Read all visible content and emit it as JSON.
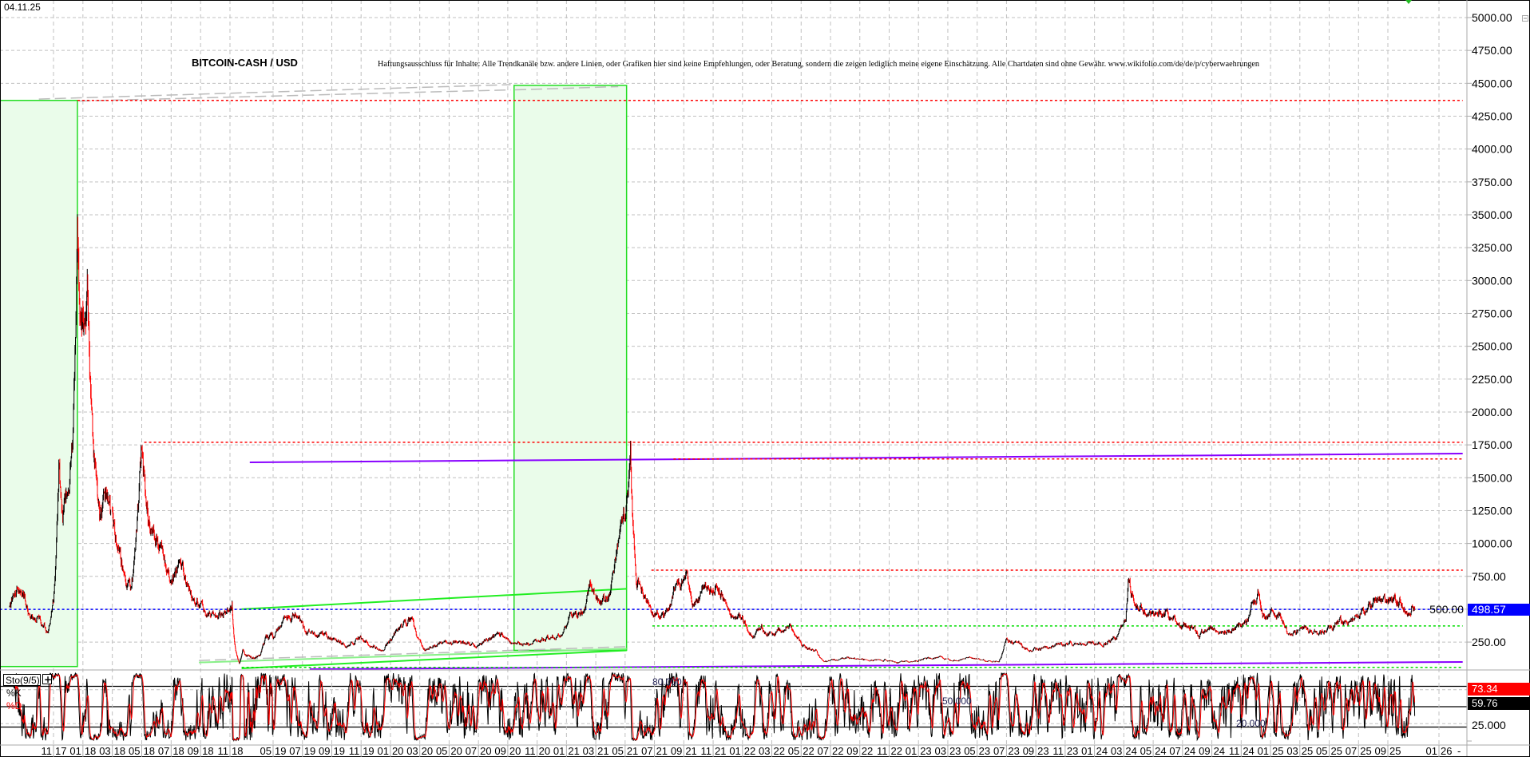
{
  "header": {
    "date": "04.11.25",
    "title": "BITCOIN-CASH / USD",
    "disclaimer": "Haftungsausschluss für Inhalte: Alle Trendkanäle bzw. andere Linien, oder Grafiken hier sind keine Empfehlungen, oder Beratung, sondern die zeigen lediglich meine eigene Einschätzung. Alle Chartdaten sind ohne Gewähr.  www.wikifolio.com/de/de/p/cyberwaehrungen"
  },
  "colors": {
    "grid": "#c0c0c0",
    "up_candle": "#000000",
    "down_candle": "#ff0000",
    "price_tag": "#0000ff",
    "stoch_k": "#000000",
    "stoch_d": "#ff0000",
    "zone_fill": "#eafcea",
    "zone_border": "#22dd22",
    "purple": "#8800ff"
  },
  "chart_data": [
    {
      "type": "line",
      "panel": "price",
      "style": "daily candlesticks (approximate closes listed)",
      "title": "BITCOIN-CASH / USD",
      "ylim": [
        0,
        5000
      ],
      "y_ticks": [
        "5000.00",
        "4750.00",
        "4500.00",
        "4250.00",
        "4000.00",
        "3750.00",
        "3500.00",
        "3250.00",
        "3000.00",
        "2750.00",
        "2500.00",
        "2250.00",
        "2000.00",
        "1750.00",
        "1500.00",
        "1250.00",
        "1000.00",
        "750.00",
        "500.00",
        "250.00"
      ],
      "y_tick_values": [
        5000,
        4750,
        4500,
        4250,
        4000,
        3750,
        3500,
        3250,
        3000,
        2750,
        2500,
        2250,
        2000,
        1750,
        1500,
        1250,
        1000,
        750,
        500,
        250
      ],
      "grid": true,
      "last_price": "498.57",
      "x": [
        "2017-08-01",
        "2017-08-15",
        "2017-09-01",
        "2017-09-15",
        "2017-10-01",
        "2017-10-20",
        "2017-11-01",
        "2017-11-12",
        "2017-11-20",
        "2017-12-01",
        "2017-12-10",
        "2017-12-20",
        "2017-12-25",
        "2018-01-01",
        "2018-01-10",
        "2018-01-20",
        "2018-02-05",
        "2018-02-20",
        "2018-03-01",
        "2018-03-15",
        "2018-04-01",
        "2018-04-10",
        "2018-04-30",
        "2018-05-15",
        "2018-06-01",
        "2018-06-15",
        "2018-07-01",
        "2018-07-20",
        "2018-08-10",
        "2018-09-01",
        "2018-09-15",
        "2018-10-15",
        "2018-11-10",
        "2018-11-20",
        "2018-12-10",
        "2018-12-25",
        "2019-02-01",
        "2019-03-01",
        "2019-04-01",
        "2019-05-01",
        "2019-05-20",
        "2019-06-20",
        "2019-07-10",
        "2019-08-01",
        "2019-09-01",
        "2019-10-01",
        "2019-10-25",
        "2019-11-20",
        "2019-12-15",
        "2020-01-15",
        "2020-02-15",
        "2020-03-12",
        "2020-04-01",
        "2020-05-01",
        "2020-06-01",
        "2020-07-01",
        "2020-07-25",
        "2020-08-20",
        "2020-09-10",
        "2020-10-01",
        "2020-11-01",
        "2020-11-25",
        "2020-12-20",
        "2021-01-10",
        "2021-02-10",
        "2021-02-21",
        "2021-03-10",
        "2021-04-01",
        "2021-04-15",
        "2021-05-01",
        "2021-05-12",
        "2021-05-25",
        "2021-06-10",
        "2021-06-25",
        "2021-07-20",
        "2021-08-10",
        "2021-09-05",
        "2021-09-20",
        "2021-10-10",
        "2021-11-05",
        "2021-11-25",
        "2021-12-10",
        "2022-01-01",
        "2022-01-22",
        "2022-02-10",
        "2022-03-01",
        "2022-03-30",
        "2022-04-20",
        "2022-05-10",
        "2022-06-01",
        "2022-06-18",
        "2022-07-15",
        "2022-08-15",
        "2022-09-15",
        "2022-10-15",
        "2022-11-10",
        "2022-11-22",
        "2022-12-15",
        "2023-01-20",
        "2023-02-15",
        "2023-03-10",
        "2023-04-15",
        "2023-05-15",
        "2023-06-15",
        "2023-06-30",
        "2023-07-10",
        "2023-08-15",
        "2023-09-15",
        "2023-10-15",
        "2023-11-15",
        "2023-12-15",
        "2024-01-15",
        "2024-02-15",
        "2024-03-05",
        "2024-03-10",
        "2024-03-25",
        "2024-04-15",
        "2024-05-10",
        "2024-06-01",
        "2024-06-25",
        "2024-07-20",
        "2024-08-05",
        "2024-08-25",
        "2024-09-15",
        "2024-10-20",
        "2024-11-12",
        "2024-11-20",
        "2024-12-05",
        "2024-12-15",
        "2024-12-28",
        "2025-01-20",
        "2025-02-05",
        "2025-03-01",
        "2025-03-20",
        "2025-04-08",
        "2025-04-25",
        "2025-05-15",
        "2025-06-10",
        "2025-06-25",
        "2025-07-15",
        "2025-08-10",
        "2025-08-25",
        "2025-09-15",
        "2025-10-01",
        "2025-10-12",
        "2025-10-20",
        "2025-10-28",
        "2025-11-04"
      ],
      "values": [
        500,
        650,
        600,
        420,
        430,
        330,
        550,
        1600,
        1200,
        1400,
        1800,
        3350,
        2600,
        2500,
        2800,
        1800,
        1200,
        1400,
        1200,
        900,
        700,
        650,
        1700,
        1200,
        1050,
        900,
        750,
        850,
        600,
        550,
        450,
        450,
        550,
        250,
        90,
        180,
        130,
        140,
        300,
        280,
        420,
        450,
        330,
        320,
        290,
        220,
        280,
        230,
        190,
        350,
        420,
        180,
        220,
        250,
        240,
        225,
        280,
        300,
        230,
        230,
        260,
        280,
        300,
        450,
        500,
        700,
        530,
        600,
        950,
        1200,
        1640,
        700,
        600,
        500,
        420,
        650,
        750,
        550,
        620,
        680,
        560,
        450,
        430,
        300,
        340,
        300,
        380,
        320,
        200,
        190,
        100,
        115,
        130,
        120,
        110,
        110,
        95,
        100,
        125,
        135,
        110,
        130,
        115,
        100,
        280,
        250,
        190,
        205,
        230,
        230,
        240,
        240,
        280,
        450,
        700,
        520,
        480,
        450,
        470,
        380,
        400,
        300,
        350,
        320,
        360,
        400,
        480,
        600,
        460,
        440,
        450,
        320,
        330,
        340,
        290,
        340,
        390,
        420,
        440,
        500,
        580,
        560,
        560,
        580,
        480,
        470,
        530,
        498.57
      ]
    },
    {
      "type": "line",
      "panel": "stochastic",
      "indicator": "Sto(9/5)",
      "series": [
        {
          "name": "%K",
          "last_value": "59.76"
        },
        {
          "name": "%D",
          "last_value": "73.34"
        }
      ],
      "ylim": [
        0,
        100
      ],
      "levels": [
        "80.000",
        "50.000",
        "20.000"
      ],
      "y_ticks": [
        "25.000"
      ]
    }
  ],
  "x_axis": {
    "labels": [
      {
        "m": "11",
        "y": "17"
      },
      {
        "m": "01",
        "y": "18"
      },
      {
        "m": "03",
        "y": "18"
      },
      {
        "m": "05",
        "y": "18"
      },
      {
        "m": "07",
        "y": "18"
      },
      {
        "m": "09",
        "y": "18"
      },
      {
        "m": "11",
        "y": "18"
      },
      {
        "m": "05",
        "y": "19"
      },
      {
        "m": "07",
        "y": "19"
      },
      {
        "m": "09",
        "y": "19"
      },
      {
        "m": "11",
        "y": "19"
      },
      {
        "m": "01",
        "y": "20"
      },
      {
        "m": "03",
        "y": "20"
      },
      {
        "m": "05",
        "y": "20"
      },
      {
        "m": "07",
        "y": "20"
      },
      {
        "m": "09",
        "y": "20"
      },
      {
        "m": "11",
        "y": "20"
      },
      {
        "m": "01",
        "y": "21"
      },
      {
        "m": "03",
        "y": "21"
      },
      {
        "m": "05",
        "y": "21"
      },
      {
        "m": "07",
        "y": "21"
      },
      {
        "m": "09",
        "y": "21"
      },
      {
        "m": "11",
        "y": "21"
      },
      {
        "m": "01",
        "y": "22"
      },
      {
        "m": "03",
        "y": "22"
      },
      {
        "m": "05",
        "y": "22"
      },
      {
        "m": "07",
        "y": "22"
      },
      {
        "m": "09",
        "y": "22"
      },
      {
        "m": "11",
        "y": "22"
      },
      {
        "m": "01",
        "y": "23"
      },
      {
        "m": "03",
        "y": "23"
      },
      {
        "m": "05",
        "y": "23"
      },
      {
        "m": "07",
        "y": "23"
      },
      {
        "m": "09",
        "y": "23"
      },
      {
        "m": "11",
        "y": "23"
      },
      {
        "m": "01",
        "y": "24"
      },
      {
        "m": "03",
        "y": "24"
      },
      {
        "m": "05",
        "y": "24"
      },
      {
        "m": "07",
        "y": "24"
      },
      {
        "m": "09",
        "y": "24"
      },
      {
        "m": "11",
        "y": "24"
      },
      {
        "m": "01",
        "y": "25"
      },
      {
        "m": "03",
        "y": "25"
      },
      {
        "m": "05",
        "y": "25"
      },
      {
        "m": "07",
        "y": "25"
      },
      {
        "m": "09",
        "y": "25"
      },
      {
        "m": "01",
        "y": "26"
      }
    ],
    "end_marker": "-"
  },
  "stoch_panel": {
    "label": "Sto(9/5)",
    "expand_button": "+",
    "k_label": "%K",
    "d_label": "%D",
    "level_80": "80.000",
    "level_50": "50.000",
    "level_20": "20.000",
    "tick_25": "25.000",
    "k_value": "59.76",
    "d_value": "73.34"
  },
  "drawings": {
    "horizontal_levels": [
      {
        "name": "red-resistance-4370",
        "color": "#ff0000",
        "price": 4370,
        "from": "2017-12-20",
        "to": "2026-02-27"
      },
      {
        "name": "red-resistance-1770",
        "color": "#ff0000",
        "price": 1770,
        "from": "2018-05-06",
        "to": "2026-02-27"
      },
      {
        "name": "red-resistance-1643",
        "color": "#ff0000",
        "price": 1643,
        "from": "2021-08-10",
        "to": "2026-02-27"
      },
      {
        "name": "red-resistance-797",
        "color": "#ff0000",
        "price": 797,
        "from": "2021-06-25",
        "to": "2026-02-27"
      },
      {
        "name": "blue-last-price",
        "color": "#0000ff",
        "price": 498.57,
        "from": "2017-07-11",
        "to": "2026-02-27"
      },
      {
        "name": "green-support-373",
        "color": "#00dd00",
        "price": 373,
        "from": "2021-06-27",
        "to": "2026-02-27"
      },
      {
        "name": "green-support-58",
        "color": "#00dd00",
        "price": 58,
        "from": "2018-12-20",
        "to": "2026-02-27"
      }
    ],
    "zones": [
      {
        "name": "zone-2017",
        "from": "2017-07-11",
        "to": "2017-12-20",
        "top": 4370,
        "bottom": 64
      },
      {
        "name": "zone-2021",
        "from": "2020-09-14",
        "to": "2021-05-04",
        "top": 4484,
        "bottom": 187
      }
    ],
    "trendlines": [
      {
        "name": "purple-upper",
        "color": "#8800ff",
        "p1": [
          "2019-01-24",
          1617
        ],
        "p2": [
          "2026-02-27",
          1684
        ]
      },
      {
        "name": "purple-lower",
        "color": "#8800ff",
        "p1": [
          "2019-07-16",
          44
        ],
        "p2": [
          "2026-02-27",
          99
        ]
      },
      {
        "name": "green-upper-channel",
        "color": "#22ee22",
        "p1": [
          "2018-12-20",
          500
        ],
        "p2": [
          "2021-05-04",
          655
        ]
      },
      {
        "name": "green-lower-channel",
        "color": "#22ee22",
        "p1": [
          "2018-12-20",
          50
        ],
        "p2": [
          "2021-05-04",
          187
        ]
      },
      {
        "name": "lightgreen-fan-1",
        "color": "#88f088",
        "p1": [
          "2018-08-28",
          95
        ],
        "p2": [
          "2021-05-04",
          200
        ]
      },
      {
        "name": "gray-fan-1",
        "color": "#bbbbbb",
        "p1": [
          "2018-08-28",
          110
        ],
        "p2": [
          "2021-05-04",
          215
        ]
      },
      {
        "name": "gray-fan-top-1",
        "color": "#bbbbbb",
        "p1": [
          "2017-10-01",
          4380
        ],
        "p2": [
          "2020-09-07",
          4490
        ]
      },
      {
        "name": "gray-fan-top-2",
        "color": "#bbbbbb",
        "p1": [
          "2017-12-24",
          4365
        ],
        "p2": [
          "2020-09-07",
          4450
        ]
      },
      {
        "name": "gray-fan-top-3",
        "color": "#bbbbbb",
        "p1": [
          "2020-09-16",
          4450
        ],
        "p2": [
          "2021-04-17",
          4475
        ]
      }
    ]
  }
}
